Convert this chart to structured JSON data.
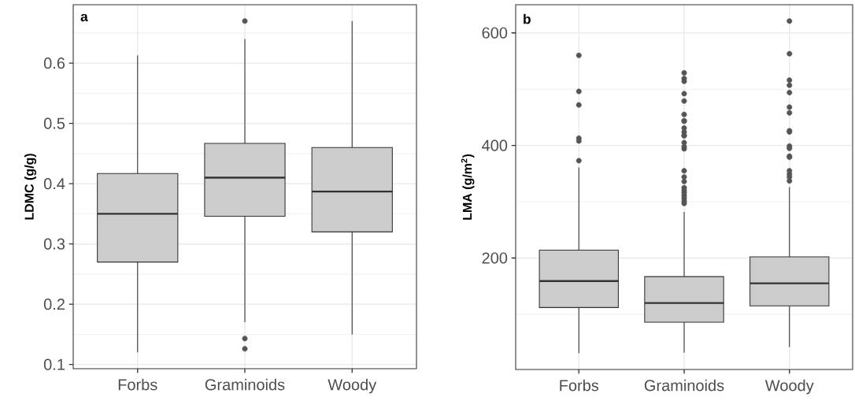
{
  "chart_data": [
    {
      "type": "box",
      "categories": [
        "Forbs",
        "Graminoids",
        "Woody"
      ],
      "ylabel": "LDMC (g/g)",
      "annotations": [
        "a"
      ],
      "ylim": [
        0.093,
        0.697
      ],
      "yticks": [
        0.1,
        0.2,
        0.3,
        0.4,
        0.5,
        0.6
      ],
      "grid": true,
      "color": "#cccccc",
      "boxes": [
        {
          "low": 0.12,
          "q1": 0.27,
          "median": 0.35,
          "q3": 0.417,
          "high": 0.613
        },
        {
          "low": 0.17,
          "q1": 0.346,
          "median": 0.41,
          "q3": 0.467,
          "high": 0.64,
          "outliers": [
            0.67,
            0.143,
            0.126
          ]
        },
        {
          "low": 0.15,
          "q1": 0.32,
          "median": 0.387,
          "q3": 0.46,
          "high": 0.67
        }
      ]
    },
    {
      "type": "box",
      "categories": [
        "Forbs",
        "Graminoids",
        "Woody"
      ],
      "ylabel": "LMA (g/m$^{2}$)",
      "annotations": [
        "b"
      ],
      "ylim": [
        2,
        650
      ],
      "yticks": [
        200,
        400,
        600
      ],
      "grid": true,
      "color": "#cccccc",
      "boxes": [
        {
          "low": 31,
          "q1": 112,
          "median": 159,
          "q3": 214,
          "high": 361,
          "outliers": [
            560,
            496,
            472,
            413,
            408,
            373
          ]
        },
        {
          "low": 32,
          "q1": 86,
          "median": 120,
          "q3": 167,
          "high": 282,
          "outliers": [
            529,
            519,
            514,
            492,
            479,
            455,
            444,
            443,
            431,
            424,
            418,
            417,
            405,
            398,
            394,
            355,
            344,
            336,
            325,
            320,
            316,
            311,
            306,
            301,
            297
          ]
        },
        {
          "low": 42,
          "q1": 115,
          "median": 155,
          "q3": 202,
          "high": 326,
          "outliers": [
            621,
            563,
            516,
            507,
            494,
            468,
            458,
            426,
            424,
            399,
            395,
            381,
            379,
            355,
            349,
            344,
            337
          ]
        }
      ]
    }
  ]
}
